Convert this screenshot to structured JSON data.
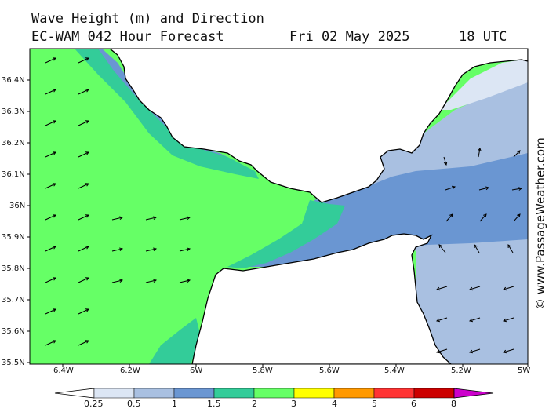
{
  "title": {
    "line1": "Wave Height (m) and Direction",
    "line2_model": "EC-WAM 042 Hour Forecast",
    "line2_date": "Fri 02 May 2025",
    "line2_time": "18 UTC"
  },
  "credit": "© www.PassageWeather.com",
  "map": {
    "lat_ticks": [
      "36.4N",
      "36.3N",
      "36.2N",
      "36.1N",
      "36N",
      "35.9N",
      "35.8N",
      "35.7N",
      "35.6N",
      "35.5N"
    ],
    "lon_ticks": [
      "6.4W",
      "6.2W",
      "6W",
      "5.8W",
      "5.6W",
      "5.4W",
      "5.2W",
      "5W"
    ],
    "colors": {
      "c025": "#dce6f4",
      "c05": "#a9c0e1",
      "c1": "#6a96d2",
      "c15": "#33cc99",
      "c2": "#66ff66",
      "land": "#ffffff"
    }
  },
  "colorbar": {
    "labels": [
      "0.25",
      "0.5",
      "1",
      "1.5",
      "2",
      "3",
      "4",
      "5",
      "6",
      "8"
    ],
    "colors": [
      "#ffffff",
      "#dce6f4",
      "#a9c0e1",
      "#6a96d2",
      "#33cc99",
      "#66ff66",
      "#ffff00",
      "#ff9900",
      "#ff3333",
      "#cc0000",
      "#cc00cc"
    ]
  }
}
